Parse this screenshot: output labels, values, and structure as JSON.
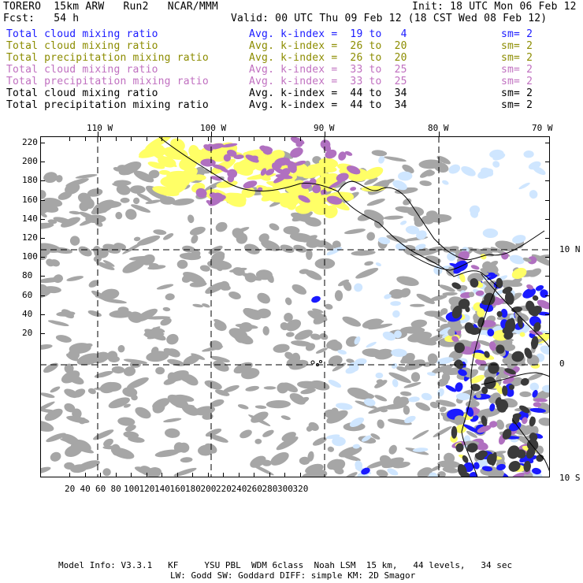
{
  "header": {
    "model": "TORERO  15km ARW   Run2   NCAR/MMM",
    "init": "Init: 18 UTC Mon 06 Feb 12",
    "fcst": "Fcst:   54 h",
    "valid": "Valid: 00 UTC Thu 09 Feb 12 (18 CST Wed 08 Feb 12)"
  },
  "legend": [
    {
      "field": "Total cloud mixing ratio",
      "range": "Avg. k-index =  19 to   4",
      "sm": "sm= 2",
      "color": "#1a1aff"
    },
    {
      "field": "Total cloud mixing ratio",
      "range": "Avg. k-index =  26 to  20",
      "sm": "sm= 2",
      "color": "#8c8c00"
    },
    {
      "field": "Total precipitation mixing ratio",
      "range": "Avg. k-index =  26 to  20",
      "sm": "sm= 2",
      "color": "#8c8c00"
    },
    {
      "field": "Total cloud mixing ratio",
      "range": "Avg. k-index =  33 to  25",
      "sm": "sm= 2",
      "color": "#c070c0"
    },
    {
      "field": "Total precipitation mixing ratio",
      "range": "Avg. k-index =  33 to  25",
      "sm": "sm= 2",
      "color": "#c070c0"
    },
    {
      "field": "Total cloud mixing ratio",
      "range": "Avg. k-index =  44 to  34",
      "sm": "sm= 2",
      "color": "#000000"
    },
    {
      "field": "Total precipitation mixing ratio",
      "range": "Avg. k-index =  44 to  34",
      "sm": "sm= 2",
      "color": "#000000"
    }
  ],
  "axes": {
    "lon_labels": [
      "110 W",
      "100 W",
      "90 W",
      "80 W",
      "70 W"
    ],
    "lat_labels": [
      "10 N",
      "0",
      "10 S"
    ],
    "y_ticks": [
      "220",
      "200",
      "180",
      "160",
      "140",
      "120",
      "100",
      "80",
      "60",
      "40",
      "20"
    ],
    "x_ticks": [
      "20",
      "40",
      "60",
      "80",
      "100",
      "120",
      "140",
      "160",
      "180",
      "200",
      "220",
      "240",
      "260",
      "280",
      "300",
      "320"
    ]
  },
  "colors": {
    "gray": "#a6a6a6",
    "dark": "#3a3a3a",
    "yellow": "#ffff66",
    "purple": "#b070c0",
    "lightblue": "#cfe6ff",
    "blue": "#1a1aff"
  },
  "footer": {
    "line1": "Model Info: V3.3.1   KF     YSU PBL  WDM 6class  Noah LSM  15 km,   44 levels,   34 sec",
    "line2": "LW: Godd SW: Goddard DIFF: simple KM: 2D Smagor"
  }
}
